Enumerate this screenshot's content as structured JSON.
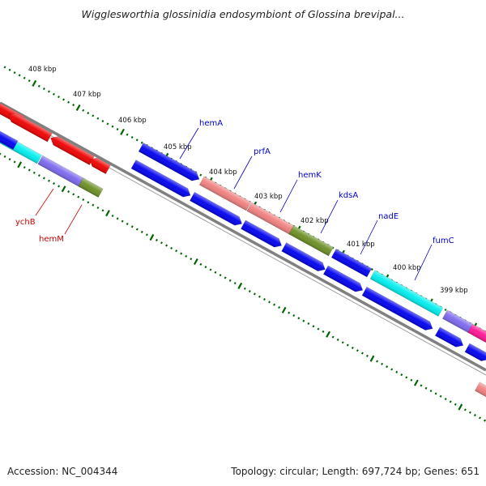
{
  "title": "Wigglesworthia glossinidia endosymbiont of Glossina brevipal...",
  "footer": {
    "accession": "Accession: NC_004344",
    "summary": "Topology: circular; Length: 697,724 bp; Genes: 651"
  },
  "ruler": {
    "labels": [
      "408 kbp",
      "407 kbp",
      "406 kbp",
      "405 kbp",
      "404 kbp",
      "403 kbp",
      "402 kbp",
      "401 kbp",
      "400 kbp",
      "399 kbp"
    ]
  },
  "genes": {
    "forward_labels": [
      "hemA",
      "prfA",
      "hemK",
      "kdsA",
      "nadE",
      "fumC"
    ],
    "reverse_labels": [
      "ychB",
      "hemM"
    ]
  },
  "colors": {
    "blue": "#0000ee",
    "salmon": "#f08080",
    "olive": "#6b8e23",
    "cyan": "#00eeee",
    "purple": "#7b68ee",
    "red": "#ee0000",
    "magenta": "#ff1493",
    "tick_green": "#006400",
    "backbone": "#808080",
    "label_blue": "#0000cc",
    "label_red": "#cc0000"
  }
}
